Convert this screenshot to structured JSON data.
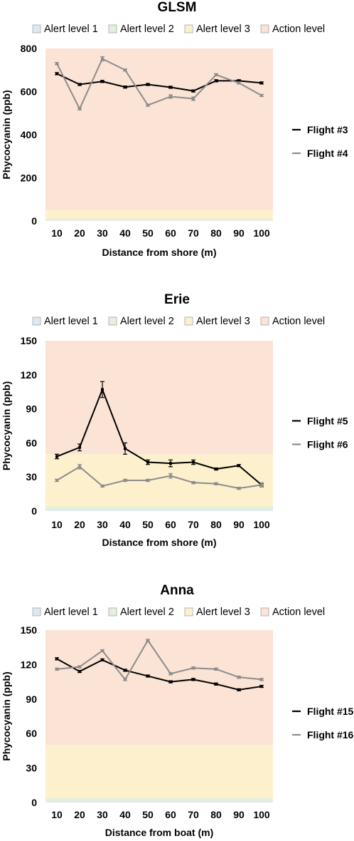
{
  "colors": {
    "alert1": "#dce9f2",
    "alert2": "#e3f0dd",
    "alert3": "#fdf0cc",
    "action": "#fbe3d6",
    "box_border": "#a6a6a6",
    "series_dark": "#000000",
    "series_grey": "#8c8c8c"
  },
  "chart_data": [
    {
      "type": "line",
      "title": "GLSM",
      "xlabel": "Distance from shore (m)",
      "ylabel": "Phycocyanin (ppb)",
      "ylim": [
        0,
        800
      ],
      "yticks": [
        0,
        200,
        400,
        600,
        800
      ],
      "categories": [
        "10",
        "20",
        "30",
        "40",
        "50",
        "60",
        "70",
        "80",
        "90",
        "100"
      ],
      "bands": [
        {
          "name": "Alert level 1",
          "from": 0,
          "to": 1
        },
        {
          "name": "Alert level 2",
          "from": 1,
          "to": 10
        },
        {
          "name": "Alert level 3",
          "from": 10,
          "to": 50
        },
        {
          "name": "Action level",
          "from": 50,
          "to": 800
        }
      ],
      "series": [
        {
          "name": "Flight #3",
          "values": [
            683,
            633,
            647,
            621,
            633,
            620,
            603,
            650,
            650,
            640
          ],
          "errors": [
            5,
            3,
            3,
            3,
            3,
            3,
            3,
            5,
            5,
            3
          ]
        },
        {
          "name": "Flight #4",
          "values": [
            730,
            520,
            752,
            700,
            537,
            577,
            567,
            678,
            640,
            582
          ],
          "errors": [
            5,
            5,
            10,
            5,
            5,
            8,
            8,
            5,
            5,
            3
          ]
        }
      ]
    },
    {
      "type": "line",
      "title": "Erie",
      "xlabel": "Distance from shore (m)",
      "ylabel": "Phycocyanin (ppb)",
      "ylim": [
        0,
        150
      ],
      "yticks": [
        0,
        30,
        60,
        90,
        120,
        150
      ],
      "categories": [
        "10",
        "20",
        "30",
        "40",
        "50",
        "60",
        "70",
        "80",
        "90",
        "100"
      ],
      "bands": [
        {
          "name": "Alert level 1",
          "from": 0,
          "to": 1
        },
        {
          "name": "Alert level 2",
          "from": 1,
          "to": 4
        },
        {
          "name": "Alert level 3",
          "from": 4,
          "to": 50
        },
        {
          "name": "Action level",
          "from": 50,
          "to": 150
        }
      ],
      "series": [
        {
          "name": "Flight #5",
          "values": [
            48,
            56,
            107,
            55,
            43,
            42,
            43,
            37,
            40,
            23
          ],
          "errors": [
            2,
            3,
            7,
            5,
            2,
            3,
            2,
            0.5,
            0.5,
            0.5
          ]
        },
        {
          "name": "Flight #6",
          "values": [
            27,
            39,
            22,
            27,
            27,
            31,
            25,
            24,
            20,
            23
          ],
          "errors": [
            1,
            2,
            0.5,
            1,
            1,
            2,
            0.5,
            0.5,
            0.5,
            2
          ]
        }
      ]
    },
    {
      "type": "line",
      "title": "Anna",
      "xlabel": "Distance from boat (m)",
      "ylabel": "Phycocyanin (ppb)",
      "ylim": [
        0,
        150
      ],
      "yticks": [
        0,
        30,
        60,
        90,
        120,
        150
      ],
      "categories": [
        "10",
        "20",
        "30",
        "40",
        "50",
        "60",
        "70",
        "80",
        "90",
        "100"
      ],
      "bands": [
        {
          "name": "Alert level 1",
          "from": 0,
          "to": 1
        },
        {
          "name": "Alert level 2",
          "from": 1,
          "to": 4
        },
        {
          "name": "Alert level 3",
          "from": 4,
          "to": 50
        },
        {
          "name": "Action level",
          "from": 50,
          "to": 150
        }
      ],
      "series": [
        {
          "name": "Flight #15",
          "values": [
            125,
            114,
            124,
            115,
            110,
            105,
            107,
            103,
            98,
            101
          ],
          "errors": [
            0.5,
            0.5,
            0.5,
            0.5,
            0.5,
            0.5,
            0.5,
            0.5,
            0.5,
            0.5
          ]
        },
        {
          "name": "Flight #16",
          "values": [
            116,
            118,
            132,
            107,
            141,
            112,
            117,
            116,
            109,
            107
          ],
          "errors": [
            0.5,
            0.5,
            0.5,
            0.5,
            0.5,
            0.5,
            0.5,
            0.5,
            0.5,
            0.5
          ]
        }
      ]
    }
  ]
}
